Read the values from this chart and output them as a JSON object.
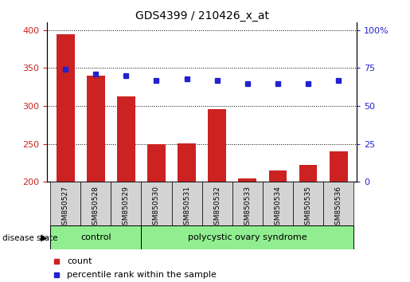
{
  "title": "GDS4399 / 210426_x_at",
  "samples": [
    "GSM850527",
    "GSM850528",
    "GSM850529",
    "GSM850530",
    "GSM850531",
    "GSM850532",
    "GSM850533",
    "GSM850534",
    "GSM850535",
    "GSM850536"
  ],
  "count_values": [
    395,
    340,
    313,
    250,
    251,
    296,
    205,
    215,
    222,
    240
  ],
  "percentile_values": [
    74,
    71,
    70,
    67,
    68,
    67,
    65,
    65,
    65,
    67
  ],
  "bar_color": "#cc2222",
  "dot_color": "#2222cc",
  "left_ylim": [
    200,
    410
  ],
  "left_yticks": [
    200,
    250,
    300,
    350,
    400
  ],
  "right_yticks": [
    0,
    25,
    50,
    75,
    100
  ],
  "right_ytick_labels": [
    "0",
    "25",
    "50",
    "75",
    "100%"
  ],
  "control_count": 3,
  "pcos_count": 7,
  "control_label": "control",
  "pcos_label": "polycystic ovary syndrome",
  "disease_state_label": "disease state",
  "legend_count": "count",
  "legend_percentile": "percentile rank within the sample",
  "group_bg_color": "#90ee90",
  "tick_label_bg": "#d3d3d3"
}
